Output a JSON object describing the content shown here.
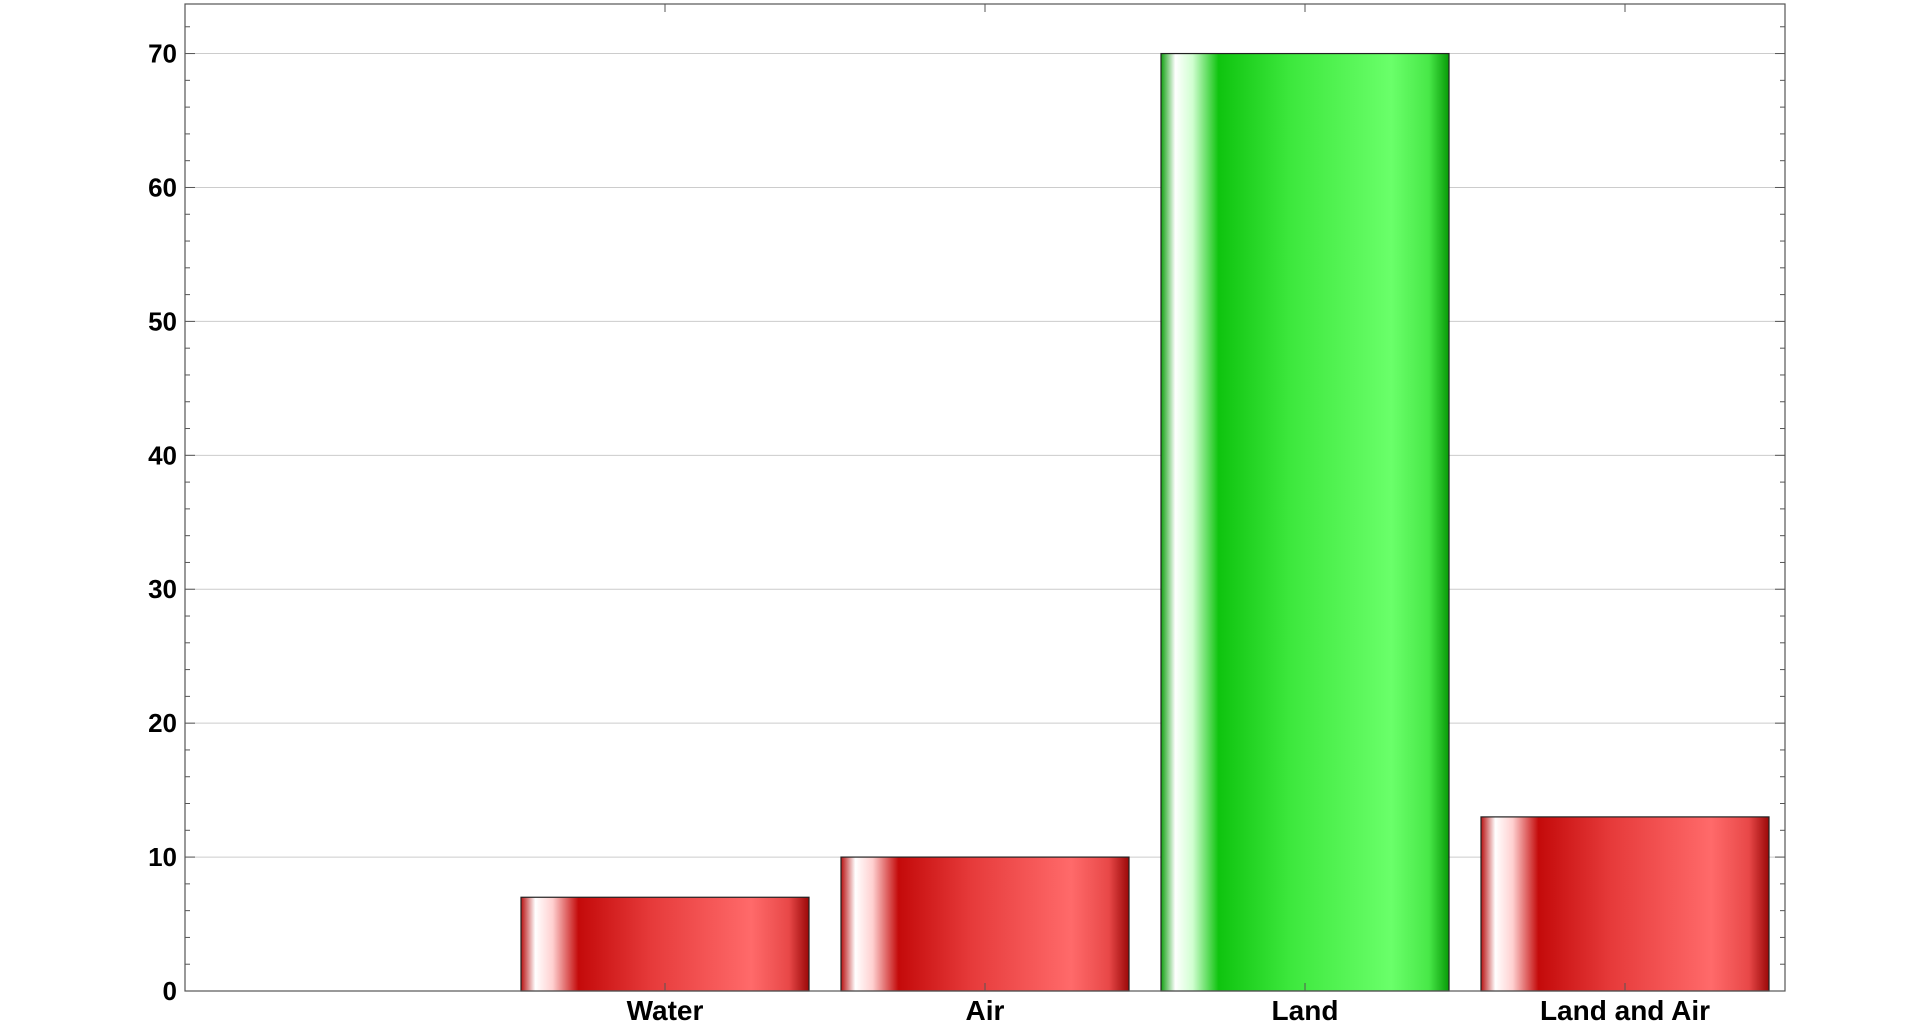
{
  "chart_data": {
    "type": "bar",
    "title": "",
    "xlabel": "",
    "ylabel": "",
    "categories": [
      "Water",
      "Air",
      "Land",
      "Land and Air"
    ],
    "values": [
      7,
      10,
      70,
      13
    ],
    "ylim": [
      0,
      73.7
    ],
    "yticks": [
      0,
      10,
      20,
      30,
      40,
      50,
      60,
      70
    ],
    "xlim": [
      -0.5,
      4.5
    ],
    "x_positions": [
      1,
      2,
      3,
      4
    ],
    "grid": "horizontal",
    "legend": "none",
    "highlight_index": 2,
    "colors": {
      "default_bar": "#cc1111",
      "highlight_bar": "#11cc11",
      "gridline": "#cccccc",
      "frame": "#555555"
    }
  }
}
